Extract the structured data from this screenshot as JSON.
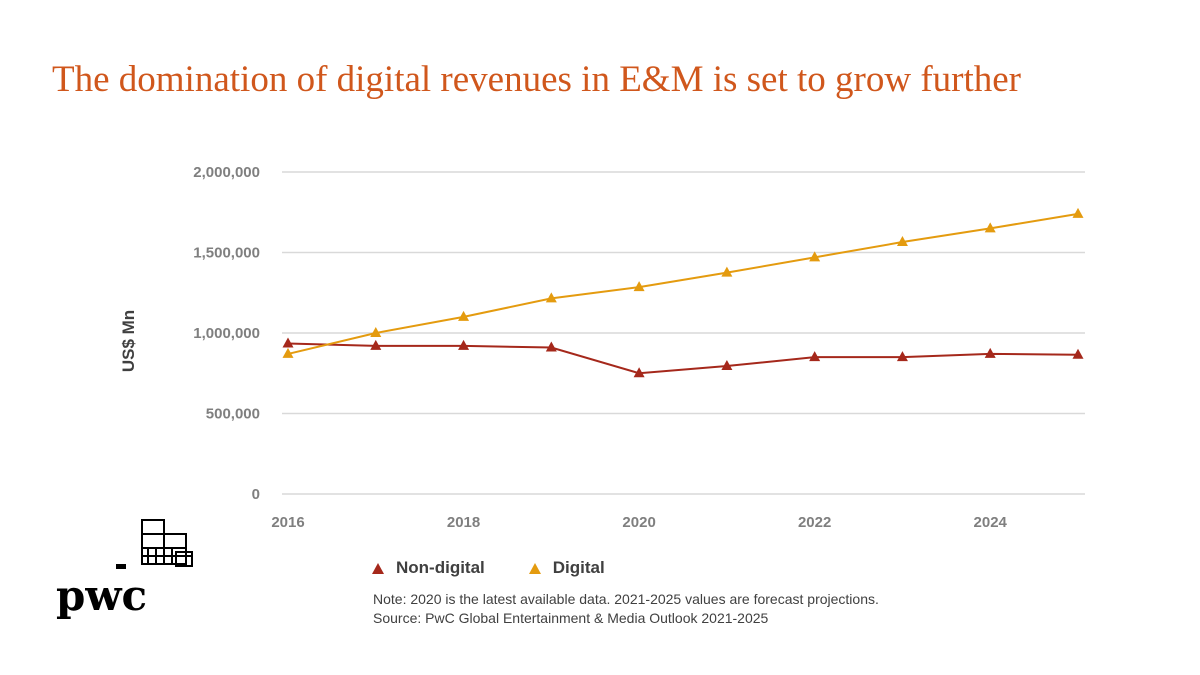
{
  "title": "The domination of digital revenues in E&M is set to grow further",
  "logo_text": "pwc",
  "notes": {
    "line1": "Note: 2020 is the latest available data. 2021-2025 values are forecast projections.",
    "line2": "Source: PwC Global Entertainment & Media Outlook 2021-2025"
  },
  "colors": {
    "title": "#d0571c",
    "non_digital": "#a5281b",
    "digital": "#e49b0f",
    "grid": "#d9d9d9"
  },
  "chart_data": {
    "type": "line",
    "title": "",
    "xlabel": "",
    "ylabel": "US$ Mn",
    "x": [
      2016,
      2017,
      2018,
      2019,
      2020,
      2021,
      2022,
      2023,
      2024,
      2025
    ],
    "xticks": [
      "2016",
      "2018",
      "2020",
      "2022",
      "2024"
    ],
    "yticks": [
      "0",
      "500,000",
      "1,000,000",
      "1,500,000",
      "2,000,000"
    ],
    "ylim": [
      0,
      2000000
    ],
    "xlim": [
      2016,
      2025
    ],
    "grid": true,
    "legend_position": "bottom",
    "marker": "triangle",
    "series": [
      {
        "name": "Non-digital",
        "color": "#a5281b",
        "values": [
          935000,
          920000,
          920000,
          910000,
          750000,
          795000,
          850000,
          850000,
          870000,
          865000
        ]
      },
      {
        "name": "Digital",
        "color": "#e49b0f",
        "values": [
          870000,
          1000000,
          1100000,
          1215000,
          1285000,
          1375000,
          1470000,
          1565000,
          1650000,
          1740000
        ]
      }
    ]
  }
}
